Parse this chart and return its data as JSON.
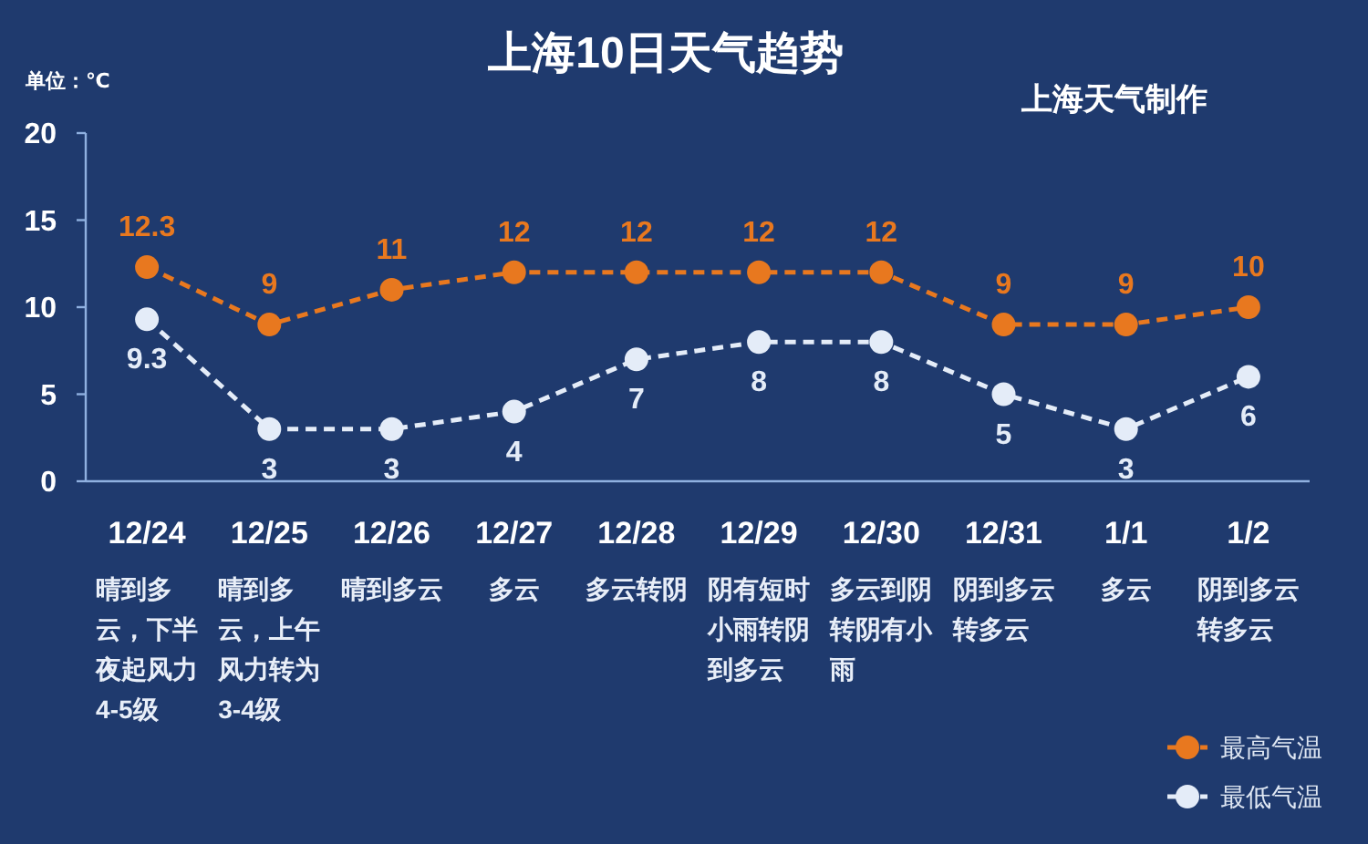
{
  "chart_data": {
    "type": "line",
    "title": "上海10日天气趋势",
    "ylabel": "单位：℃",
    "categories": [
      "12/24",
      "12/25",
      "12/26",
      "12/27",
      "12/28",
      "12/29",
      "12/30",
      "12/31",
      "1/1",
      "1/2"
    ],
    "series": [
      {
        "name": "最高气温",
        "color": "#e8781f",
        "values": [
          12.3,
          9,
          11,
          12,
          12,
          12,
          12,
          9,
          9,
          10
        ]
      },
      {
        "name": "最低气温",
        "color": "#e4ecf8",
        "values": [
          9.3,
          3,
          3,
          4,
          7,
          8,
          8,
          5,
          3,
          6
        ]
      }
    ],
    "ylim": [
      0,
      20
    ],
    "yticks": [
      0,
      5,
      10,
      15,
      20
    ],
    "data_labels": true,
    "legend": "bottom right",
    "marker": "circle",
    "line_style": "dashed",
    "annotations": [
      "晴到多云，下半夜起风力4-5级",
      "晴到多云，上午风力转为3-4级",
      "晴到多云",
      "多云",
      "多云转阴",
      "阴有短时小雨转阴到多云",
      "多云到阴转阴有小雨",
      "阴到多云转多云",
      "多云",
      "阴到多云转多云",
      "上海天气制作"
    ]
  }
}
